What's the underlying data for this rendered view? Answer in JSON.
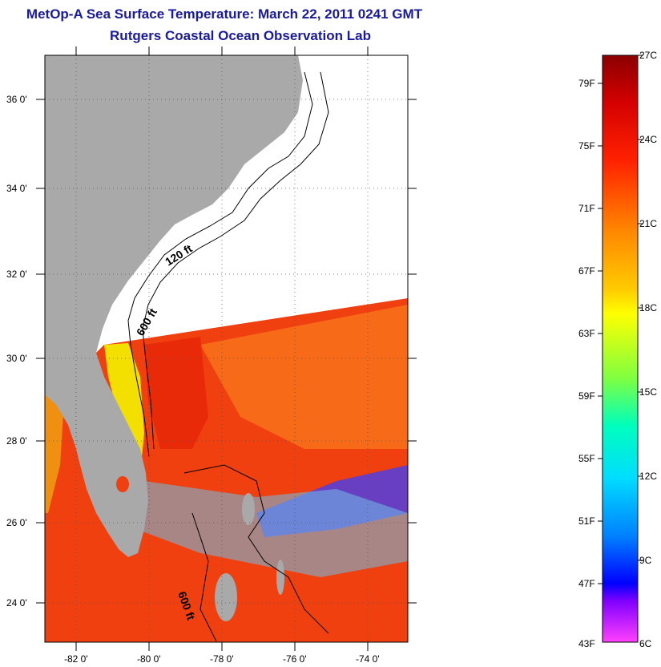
{
  "header": {
    "title": "MetOp-A Sea Surface Temperature:  March 22, 2011 0241 GMT",
    "subtitle": "Rutgers Coastal Ocean Observation Lab"
  },
  "map": {
    "lat_ticks": [
      "36 0'",
      "34 0'",
      "32 0'",
      "30 0'",
      "28 0'",
      "26 0'",
      "24 0'"
    ],
    "lon_ticks": [
      "-82 0'",
      "-80 0'",
      "-78 0'",
      "-76 0'",
      "-74 0'"
    ],
    "contours": {
      "a": "120 ft",
      "b": "600 ft",
      "c": "600 ft"
    },
    "colors": {
      "land": "#a9a9a9",
      "nodata": "#ffffff"
    }
  },
  "colorbar": {
    "fahrenheit": [
      "79F",
      "75F",
      "71F",
      "67F",
      "63F",
      "59F",
      "55F",
      "51F",
      "47F",
      "43F"
    ],
    "celsius": [
      "27C",
      "24C",
      "21C",
      "18C",
      "15C",
      "12C",
      "9C",
      "6C"
    ]
  }
}
